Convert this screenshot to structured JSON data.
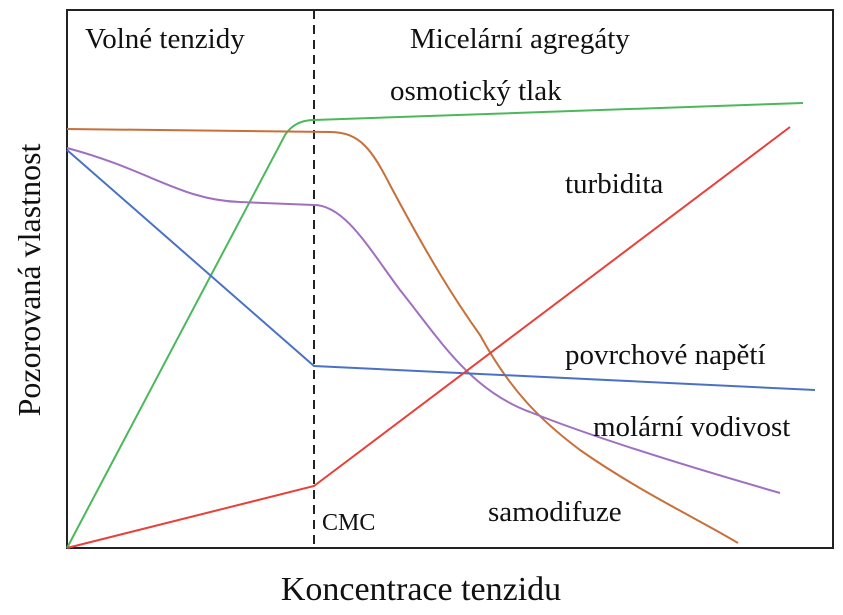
{
  "regions": {
    "left": "Volné tenzidy",
    "right": "Micelární agregáty"
  },
  "curves": {
    "osmotic": "osmotický tlak",
    "turbidity": "turbidita",
    "surface_tension": "povrchové napětí",
    "molar_conductivity": "molární vodivost",
    "self_diffusion": "samodifuze"
  },
  "marker": "CMC",
  "axes": {
    "x": "Koncentrace tenzidu",
    "y": "Pozorovaná vlastnost"
  }
}
